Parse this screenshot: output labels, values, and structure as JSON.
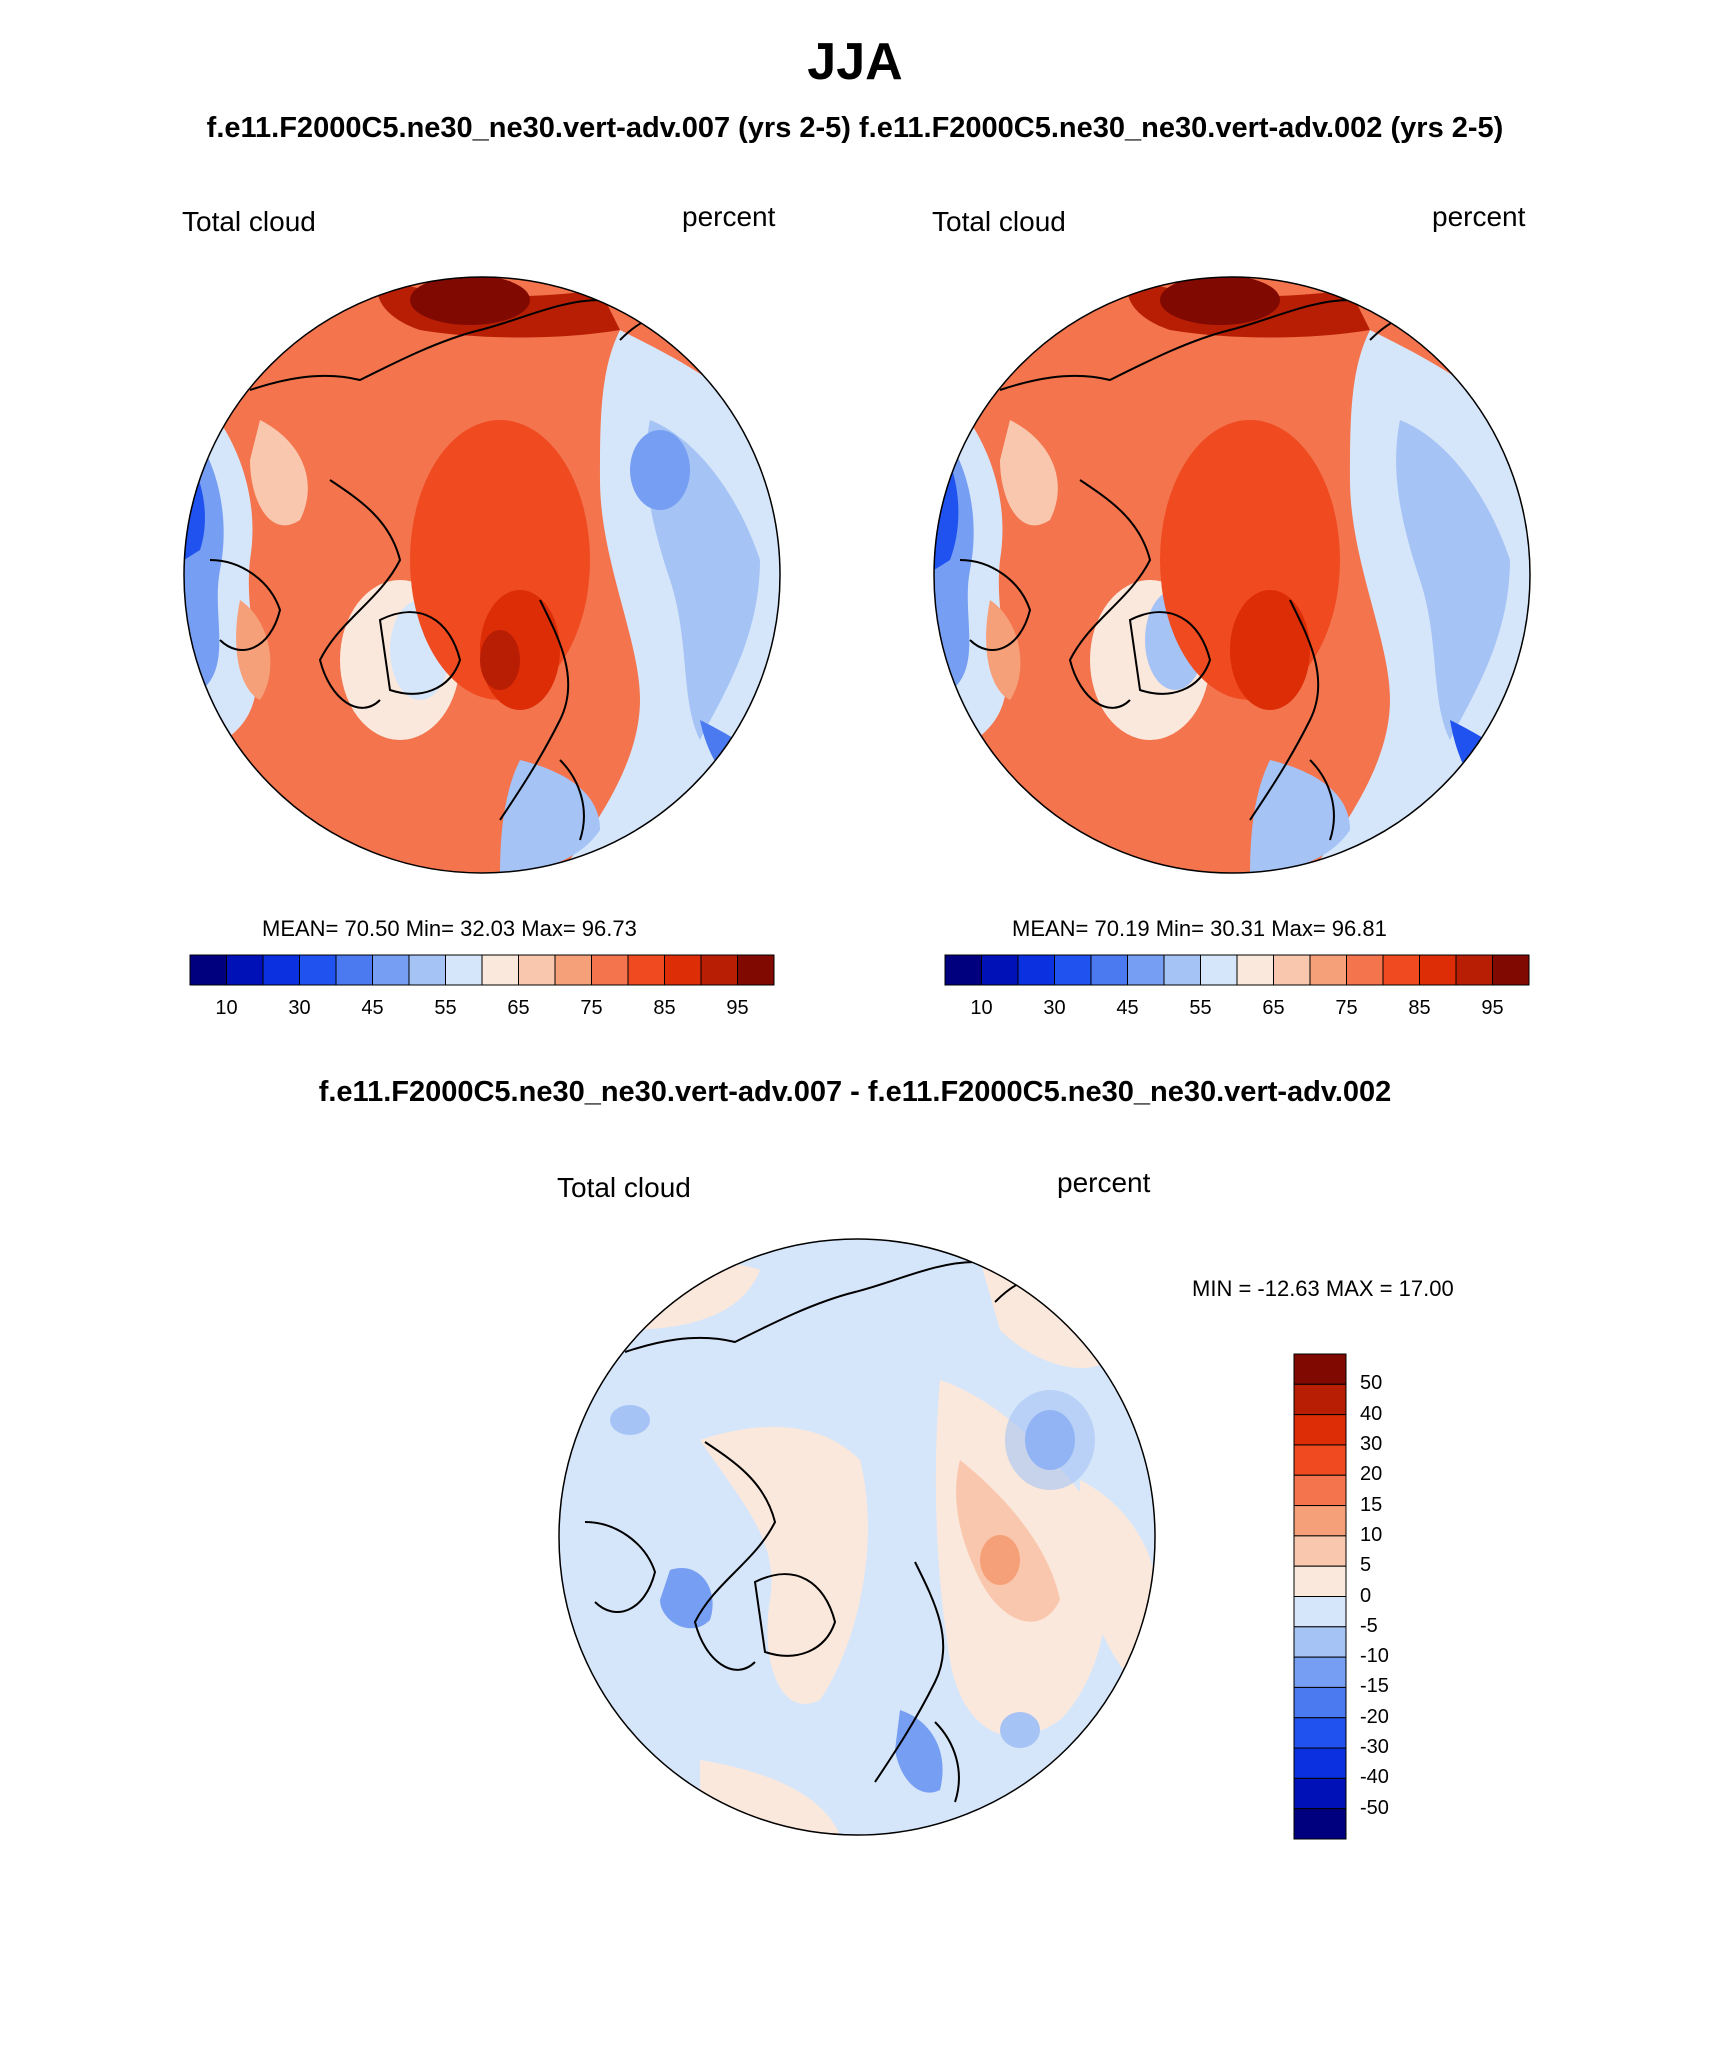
{
  "figure": {
    "title": "JJA",
    "subtitle": "f.e11.F2000C5.ne30_ne30.vert-adv.007 (yrs 2-5) f.e11.F2000C5.ne30_ne30.vert-adv.002 (yrs 2-5)",
    "diff_title": "f.e11.F2000C5.ne30_ne30.vert-adv.007 - f.e11.F2000C5.ne30_ne30.vert-adv.002"
  },
  "colors": {
    "abs_scale": [
      "#00007f",
      "#0011b8",
      "#0a30e0",
      "#2052f0",
      "#4a79f0",
      "#769ef2",
      "#a5c3f5",
      "#d6e6fa",
      "#fbe8dc",
      "#f9c7ad",
      "#f6a07a",
      "#f3744d",
      "#ef4a20",
      "#dd2d06",
      "#b81e04",
      "#800a02"
    ],
    "diff_scale": [
      "#00007f",
      "#0011b8",
      "#0a30e0",
      "#2052f0",
      "#4a79f0",
      "#769ef2",
      "#a5c3f5",
      "#d6e6fa",
      "#fbe8dc",
      "#f9c7ad",
      "#f6a07a",
      "#f3744d",
      "#ef4a20",
      "#dd2d06",
      "#b81e04",
      "#800a02"
    ]
  },
  "panels": [
    {
      "id": "left",
      "variable": "Total cloud",
      "units": "percent",
      "stats": "MEAN=  70.50  Min=  32.03  Max=  96.73",
      "colorbar_ticks": [
        "10",
        "30",
        "45",
        "55",
        "65",
        "75",
        "85",
        "95"
      ]
    },
    {
      "id": "right",
      "variable": "Total cloud",
      "units": "percent",
      "stats": "MEAN=  70.19  Min=  30.31  Max=  96.81",
      "colorbar_ticks": [
        "10",
        "30",
        "45",
        "55",
        "65",
        "75",
        "85",
        "95"
      ]
    }
  ],
  "diff_panel": {
    "variable": "Total cloud",
    "units": "percent",
    "stats": "MIN = -12.63 MAX =  17.00",
    "colorbar_ticks": [
      "50",
      "40",
      "30",
      "20",
      "15",
      "10",
      "5",
      "0",
      "-5",
      "-10",
      "-15",
      "-20",
      "-30",
      "-40",
      "-50"
    ]
  }
}
